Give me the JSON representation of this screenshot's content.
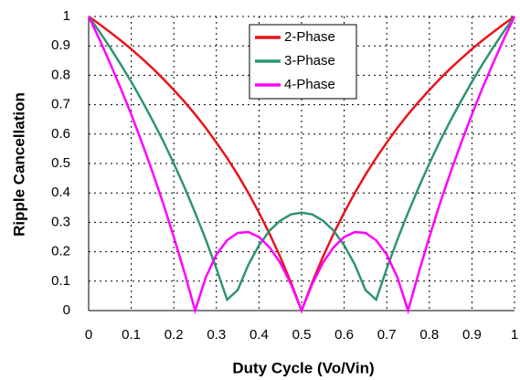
{
  "chart_data": {
    "type": "line",
    "xlabel": "Duty Cycle (Vo/Vin)",
    "ylabel": "Ripple Cancellation",
    "x": [
      0,
      0.025,
      0.05,
      0.075,
      0.1,
      0.125,
      0.15,
      0.175,
      0.2,
      0.225,
      0.25,
      0.275,
      0.3,
      0.325,
      0.35,
      0.375,
      0.4,
      0.425,
      0.45,
      0.475,
      0.5,
      0.525,
      0.55,
      0.575,
      0.6,
      0.625,
      0.65,
      0.675,
      0.7,
      0.725,
      0.75,
      0.775,
      0.8,
      0.825,
      0.85,
      0.875,
      0.9,
      0.925,
      0.95,
      0.975,
      1
    ],
    "series": [
      {
        "name": "2-Phase",
        "color": "#e8141c",
        "values": [
          1,
          0.974,
          0.947,
          0.919,
          0.889,
          0.857,
          0.824,
          0.788,
          0.75,
          0.71,
          0.667,
          0.621,
          0.571,
          0.519,
          0.462,
          0.4,
          0.333,
          0.261,
          0.182,
          0.095,
          0,
          0.095,
          0.182,
          0.261,
          0.333,
          0.4,
          0.462,
          0.519,
          0.571,
          0.621,
          0.667,
          0.71,
          0.75,
          0.788,
          0.824,
          0.857,
          0.889,
          0.919,
          0.947,
          0.974,
          1
        ]
      },
      {
        "name": "3-Phase",
        "color": "#2e9474",
        "values": [
          1,
          0.949,
          0.895,
          0.838,
          0.778,
          0.714,
          0.647,
          0.576,
          0.5,
          0.419,
          0.333,
          0.241,
          0.143,
          0.037,
          0.07,
          0.156,
          0.222,
          0.272,
          0.306,
          0.327,
          0.333,
          0.327,
          0.306,
          0.272,
          0.222,
          0.156,
          0.07,
          0.037,
          0.143,
          0.241,
          0.333,
          0.419,
          0.5,
          0.576,
          0.647,
          0.714,
          0.778,
          0.838,
          0.895,
          0.949,
          1
        ]
      },
      {
        "name": "4-Phase",
        "color": "#ff00ff",
        "values": [
          1,
          0.923,
          0.842,
          0.757,
          0.667,
          0.571,
          0.471,
          0.364,
          0.25,
          0.129,
          0,
          0.113,
          0.19,
          0.239,
          0.264,
          0.267,
          0.25,
          0.215,
          0.162,
          0.09,
          0,
          0.09,
          0.162,
          0.215,
          0.25,
          0.267,
          0.264,
          0.239,
          0.19,
          0.113,
          0,
          0.129,
          0.25,
          0.364,
          0.471,
          0.571,
          0.667,
          0.757,
          0.842,
          0.923,
          1
        ]
      }
    ],
    "xlim": [
      0,
      1
    ],
    "xticks": [
      0,
      0.1,
      0.2,
      0.3,
      0.4,
      0.5,
      0.6,
      0.7,
      0.8,
      0.9,
      1
    ],
    "ylim": [
      0,
      1
    ],
    "yticks": [
      0,
      0.1,
      0.2,
      0.3,
      0.4,
      0.5,
      0.6,
      0.7,
      0.8,
      0.9,
      1
    ],
    "grid": true
  }
}
